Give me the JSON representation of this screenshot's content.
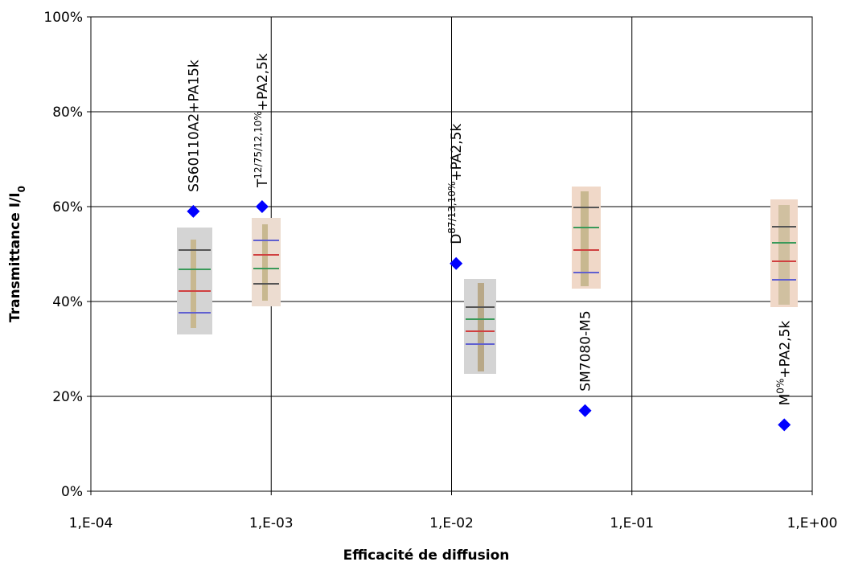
{
  "chart_data": {
    "type": "scatter",
    "xlabel": "Efficacité de diffusion",
    "ylabel": {
      "text": "Transmittance I/I",
      "sub": "0"
    },
    "xscale": "log",
    "grid": true,
    "color": "#0000ff",
    "x": [
      0.00037,
      0.00089,
      0.0106,
      0.055,
      0.7
    ],
    "values": [
      59,
      60,
      48,
      17,
      14
    ],
    "point_labels": [
      {
        "main": "SS60110A2+PA15k"
      },
      {
        "main": "T",
        "sup": "12/75/12,10%",
        "rest": "+PA2,5k"
      },
      {
        "main": "D",
        "sup": "87/13,10%",
        "rest": "+PA2,5k"
      },
      {
        "main": "SM7080-M5"
      },
      {
        "main": "M",
        "sup": "0%",
        "rest": "+PA2,5k"
      }
    ],
    "xlim": [
      0.0001,
      1
    ],
    "xticks": [
      {
        "value": 0.0001,
        "label": "1,E-04"
      },
      {
        "value": 0.001,
        "label": "1,E-03"
      },
      {
        "value": 0.01,
        "label": "1,E-02"
      },
      {
        "value": 0.1,
        "label": "1,E-01"
      },
      {
        "value": 1,
        "label": "1,E+00"
      }
    ],
    "ylim": [
      0,
      100
    ],
    "yticks": [
      {
        "value": 0,
        "label": "0%"
      },
      {
        "value": 20,
        "label": "20%"
      },
      {
        "value": 40,
        "label": "40%"
      },
      {
        "value": 60,
        "label": "60%"
      },
      {
        "value": 80,
        "label": "80%"
      },
      {
        "value": 100,
        "label": "100%"
      }
    ]
  }
}
